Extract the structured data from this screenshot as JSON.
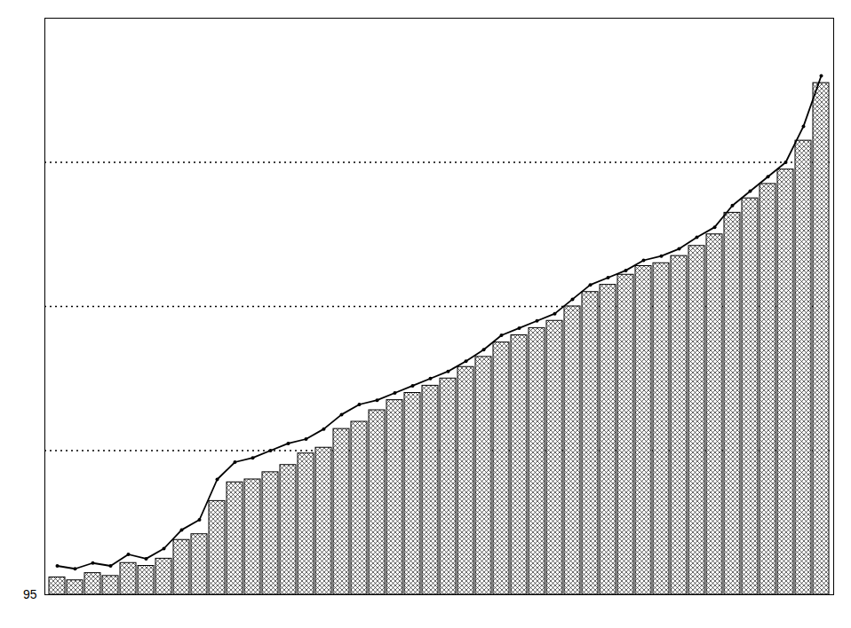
{
  "chart_data": {
    "type": "bar",
    "categories": [
      null,
      null,
      null,
      null,
      null,
      null,
      null,
      null,
      null,
      null,
      null,
      null,
      null,
      null,
      null,
      null,
      null,
      null,
      null,
      null,
      null,
      null,
      null,
      null,
      null,
      null,
      null,
      null,
      null,
      null,
      null,
      null,
      null,
      null,
      null,
      null,
      null,
      null,
      null,
      null,
      null,
      null,
      null,
      null
    ],
    "series": [
      {
        "type": "bar",
        "color": "#ffffff",
        "values": [
          96.2,
          96.0,
          96.5,
          96.3,
          97.2,
          97.0,
          97.5,
          98.8,
          99.2,
          101.5,
          102.8,
          103.0,
          103.5,
          104.0,
          104.8,
          105.2,
          106.5,
          107.0,
          107.8,
          108.5,
          109.0,
          109.5,
          110.0,
          110.8,
          111.5,
          112.5,
          113.0,
          113.5,
          114.0,
          115.0,
          116.0,
          116.5,
          117.2,
          117.8,
          118.0,
          118.5,
          119.2,
          120.0,
          121.5,
          122.5,
          123.5,
          124.5,
          126.5,
          130.5
        ]
      },
      {
        "type": "line",
        "color": "#000000",
        "marker": "circle",
        "values": [
          97.0,
          96.8,
          97.2,
          97.0,
          97.8,
          97.5,
          98.2,
          99.5,
          100.2,
          103.0,
          104.2,
          104.5,
          105.0,
          105.5,
          105.8,
          106.5,
          107.5,
          108.2,
          108.5,
          109.0,
          109.5,
          110.0,
          110.5,
          111.2,
          112.0,
          113.0,
          113.5,
          114.0,
          114.5,
          115.5,
          116.5,
          117.0,
          117.5,
          118.2,
          118.5,
          119.0,
          119.8,
          120.5,
          122.0,
          123.0,
          124.0,
          125.0,
          127.5,
          131.0
        ]
      }
    ],
    "ylim": [
      95,
      135
    ],
    "yticks": [
      95
    ],
    "grid_lines": [
      105,
      115,
      125
    ],
    "tick_labels": "y"
  }
}
